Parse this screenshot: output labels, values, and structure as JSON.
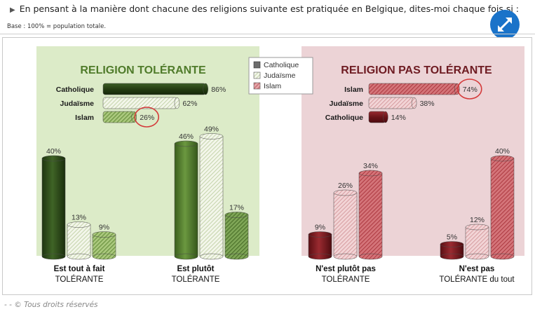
{
  "header": {
    "question": "En pensant à la manière dont chacune des religions suivante est pratiquée en Belgique, dites-moi chaque fois si :",
    "base": "Base : 100% = population totale."
  },
  "footer": {
    "text": "- - © Tous droits réservés"
  },
  "icons": {
    "bullet": "triangle-right-icon",
    "expand": "expand-arrows-icon"
  },
  "colors": {
    "tolerant_bg": "#dcebc8",
    "not_tolerant_bg": "#ecd3d6",
    "catholique_green": "#2e4d1c",
    "judaisme_green": "#cfe0b4",
    "islam_green": "#6f9a3c",
    "islam_red": "#d98a90",
    "judaisme_red": "#e8b5b9",
    "catholique_red": "#7a1a1f",
    "circle": "#d43a3a"
  },
  "chart_data": [
    {
      "type": "bar",
      "orientation": "horizontal",
      "title": "RELIGION TOLÉRANTE",
      "categories": [
        "Catholique",
        "Judaïsme",
        "Islam"
      ],
      "values": [
        86,
        62,
        26
      ],
      "value_labels": [
        "86%",
        "62%",
        "26%"
      ],
      "highlighted": "Islam"
    },
    {
      "type": "bar",
      "orientation": "horizontal",
      "title": "RELIGION PAS TOLÉRANTE",
      "categories": [
        "Islam",
        "Judaïsme",
        "Catholique"
      ],
      "values": [
        74,
        38,
        14
      ],
      "value_labels": [
        "74%",
        "38%",
        "14%"
      ],
      "highlighted": "Islam"
    },
    {
      "type": "bar",
      "orientation": "vertical",
      "legend": [
        "Catholique",
        "Judaïsme",
        "Islam"
      ],
      "legend_position": "top-center",
      "categories": [
        "Est tout à fait TOLÉRANTE",
        "Est plutôt TOLÉRANTE",
        "N'est plutôt pas TOLÉRANTE",
        "N'est pas TOLÉRANTE du tout"
      ],
      "category_lines": [
        [
          "Est tout à fait",
          "TOLÉRANTE"
        ],
        [
          "Est plutôt",
          "TOLÉRANTE"
        ],
        [
          "N'est plutôt pas",
          "TOLÉRANTE"
        ],
        [
          "N'est pas",
          "TOLÉRANTE du tout"
        ]
      ],
      "series": [
        {
          "name": "Catholique",
          "values": [
            40,
            46,
            9,
            5
          ]
        },
        {
          "name": "Judaïsme",
          "values": [
            13,
            49,
            26,
            12
          ]
        },
        {
          "name": "Islam",
          "values": [
            9,
            17,
            34,
            40
          ]
        }
      ],
      "value_labels": [
        [
          "40%",
          "13%",
          "9%"
        ],
        [
          "46%",
          "49%",
          "17%"
        ],
        [
          "9%",
          "26%",
          "34%"
        ],
        [
          "5%",
          "12%",
          "40%"
        ]
      ]
    }
  ]
}
